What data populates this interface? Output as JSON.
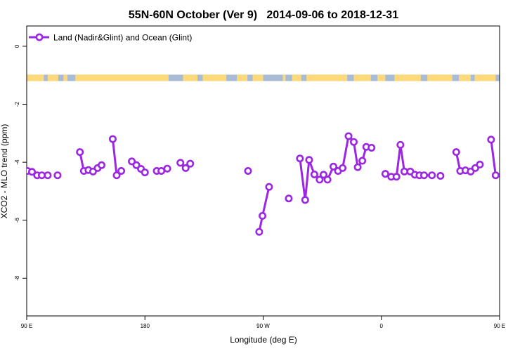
{
  "chart_data": {
    "type": "line",
    "title": "55N-60N October (Ver 9)   2014-09-06 to 2018-12-31",
    "xlabel": "Longitude (deg E)",
    "ylabel": "XCO2 - MLO trend (ppm)",
    "xlim": [
      90,
      450
    ],
    "ylim": [
      -9.3,
      0.7
    ],
    "x_ticks": [
      {
        "value": 90,
        "label": "90 E"
      },
      {
        "value": 180,
        "label": "180"
      },
      {
        "value": 270,
        "label": "90 W"
      },
      {
        "value": 360,
        "label": "0"
      },
      {
        "value": 450,
        "label": "90 E"
      },
      {
        "value": 540,
        "label": "180"
      }
    ],
    "y_ticks": [
      {
        "value": 0,
        "label": "0"
      },
      {
        "value": -2,
        "label": "-2"
      },
      {
        "value": -4,
        "label": "-4"
      },
      {
        "value": -6,
        "label": "-6"
      },
      {
        "value": -8,
        "label": "-8"
      }
    ],
    "legend": {
      "position": "top-left"
    },
    "land_mask_band": {
      "y_top": -0.98,
      "y_bottom": -1.2,
      "land_color": "#fdd97a",
      "ocean_color": "#a9bcd6"
    },
    "series": [
      {
        "name": "Land (Nadir&Glint) and Ocean (Glint)",
        "color": "#9b27e3",
        "segments": [
          [
            [
              90.5,
              -4.3
            ],
            [
              94,
              -4.33
            ],
            [
              98,
              -4.45
            ],
            [
              101.5,
              -4.45
            ],
            [
              106,
              -4.45
            ]
          ],
          [
            [
              113.5,
              -4.45
            ]
          ],
          [
            [
              130.5,
              -3.65
            ],
            [
              133.5,
              -4.3
            ],
            [
              137,
              -4.27
            ],
            [
              140.5,
              -4.32
            ],
            [
              144,
              -4.2
            ],
            [
              147,
              -4.1
            ]
          ],
          [
            [
              155.5,
              -3.2
            ],
            [
              158.5,
              -4.45
            ],
            [
              162,
              -4.3
            ]
          ],
          [
            [
              170,
              -3.97
            ],
            [
              173.5,
              -4.1
            ],
            [
              177,
              -4.23
            ],
            [
              180,
              -4.35
            ]
          ],
          [
            [
              189,
              -4.3
            ],
            [
              192.5,
              -4.3
            ],
            [
              197,
              -4.22
            ]
          ],
          [
            [
              207,
              -4.02
            ],
            [
              211,
              -4.2
            ],
            [
              214.5,
              -4.05
            ]
          ],
          [
            [
              258.5,
              -4.3
            ]
          ],
          [
            [
              267,
              -6.4
            ],
            [
              269.5,
              -5.85
            ],
            [
              274.5,
              -4.85
            ]
          ],
          [
            [
              289.5,
              -5.25
            ]
          ],
          [
            [
              298,
              -3.87
            ],
            [
              302,
              -5.3
            ],
            [
              305,
              -3.92
            ],
            [
              309,
              -4.42
            ],
            [
              313,
              -4.6
            ],
            [
              316,
              -4.43
            ],
            [
              319,
              -4.6
            ],
            [
              323.5,
              -4.15
            ],
            [
              327,
              -4.3
            ],
            [
              330.5,
              -4.2
            ],
            [
              335,
              -3.1
            ],
            [
              339,
              -3.3
            ],
            [
              342,
              -4.17
            ],
            [
              345.5,
              -3.95
            ],
            [
              348.5,
              -3.47
            ],
            [
              352.5,
              -3.5
            ]
          ],
          [
            [
              363,
              -4.4
            ],
            [
              367.5,
              -4.5
            ],
            [
              371.5,
              -4.5
            ],
            [
              374.5,
              -3.4
            ],
            [
              377.5,
              -4.32
            ],
            [
              382,
              -4.32
            ],
            [
              385.5,
              -4.43
            ],
            [
              389,
              -4.45
            ],
            [
              392.5,
              -4.45
            ],
            [
              398.5,
              -4.45
            ]
          ],
          [
            [
              405,
              -4.47
            ]
          ],
          [
            [
              417,
              -3.65
            ],
            [
              420,
              -4.3
            ],
            [
              424,
              -4.28
            ],
            [
              428,
              -4.32
            ],
            [
              431.5,
              -4.2
            ],
            [
              435,
              -4.08
            ]
          ],
          [
            [
              443.5,
              -3.22
            ],
            [
              447,
              -4.45
            ]
          ]
        ]
      }
    ]
  }
}
